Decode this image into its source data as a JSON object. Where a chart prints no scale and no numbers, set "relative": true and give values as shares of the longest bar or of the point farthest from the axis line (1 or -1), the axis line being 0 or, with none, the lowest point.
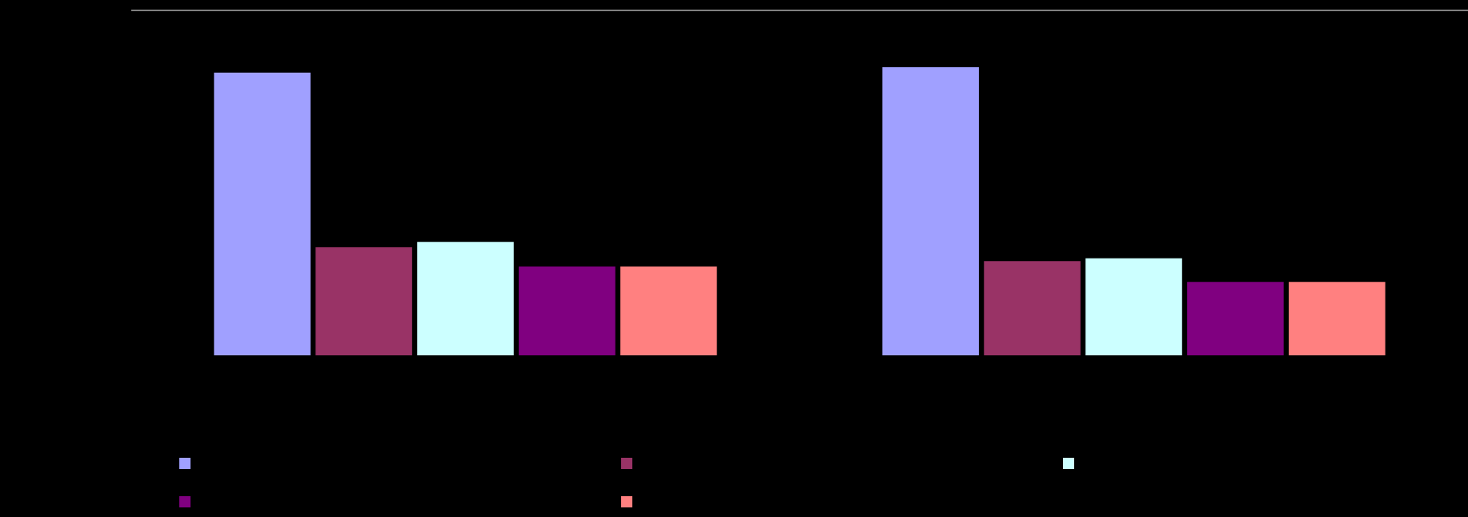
{
  "chart_data": {
    "type": "bar",
    "relative": true,
    "categories": [
      null,
      null
    ],
    "series": [
      {
        "color": "#a0a0ff",
        "values": [
          0.981,
          1
        ]
      },
      {
        "color": "#993366",
        "values": [
          0.375,
          0.327
        ]
      },
      {
        "color": "#ccffff",
        "values": [
          0.394,
          0.337
        ]
      },
      {
        "color": "#800080",
        "values": [
          0.308,
          0.255
        ]
      },
      {
        "color": "#ff8080",
        "values": [
          0.308,
          0.255
        ]
      }
    ]
  }
}
